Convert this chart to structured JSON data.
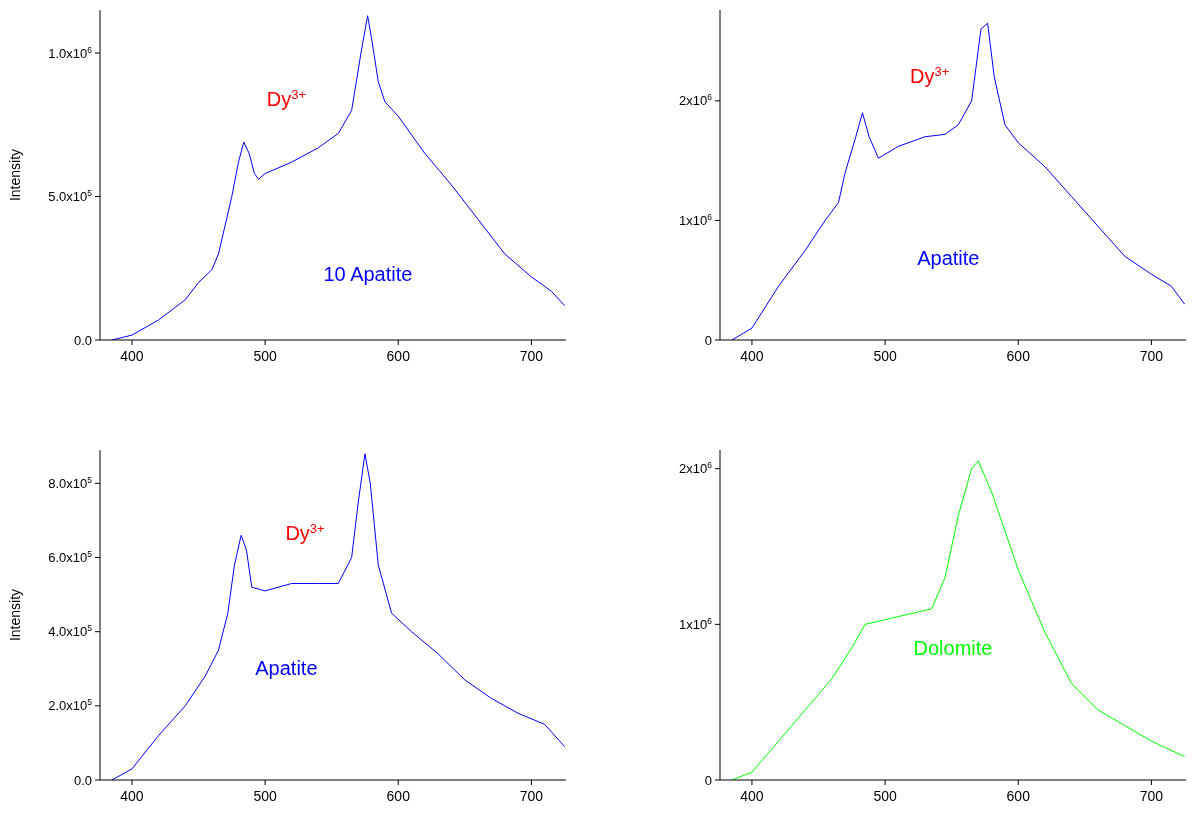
{
  "chart_data": [
    {
      "type": "line",
      "ylabel": "Intensity",
      "xlim": [
        376,
        726
      ],
      "xticks": [
        400,
        500,
        600,
        700
      ],
      "ylim": [
        0,
        1150000
      ],
      "yticks": [
        {
          "value": 0,
          "label": "0.0"
        },
        {
          "value": 500000,
          "label": "5.0x10$^{5}$"
        },
        {
          "value": 1000000,
          "label": "1.0x10$^{6}$"
        }
      ],
      "annotations": [
        "Dy$^{3+}$",
        "10 Apatite"
      ],
      "x": [
        385,
        400,
        420,
        440,
        450,
        460,
        465,
        470,
        475,
        480,
        484,
        488,
        492,
        495,
        500,
        520,
        540,
        555,
        565,
        572,
        577,
        580,
        585,
        590,
        600,
        620,
        640,
        660,
        680,
        700,
        715,
        725
      ],
      "series": [
        {
          "color": "#0000ff",
          "values": [
            0,
            17000,
            70000,
            140000,
            200000,
            245000,
            300000,
            400000,
            500000,
            620000,
            690000,
            650000,
            580000,
            560000,
            580000,
            620000,
            670000,
            720000,
            800000,
            1000000,
            1130000,
            1050000,
            900000,
            830000,
            780000,
            650000,
            540000,
            420000,
            300000,
            220000,
            170000,
            120000
          ]
        }
      ]
    },
    {
      "type": "line",
      "xlim": [
        376,
        726
      ],
      "xticks": [
        400,
        500,
        600,
        700
      ],
      "ylim": [
        0,
        2760000
      ],
      "yticks": [
        0,
        {
          "value": 1000000,
          "label": "1x10$^{6}$"
        },
        {
          "value": 2000000,
          "label": "2x10$^{6}$"
        }
      ],
      "annotations": [
        "Dy$^{3+}$",
        "Apatite"
      ],
      "x": [
        385,
        400,
        420,
        440,
        455,
        465,
        470,
        478,
        483,
        488,
        495,
        510,
        530,
        545,
        555,
        565,
        572,
        577,
        582,
        590,
        600,
        620,
        640,
        660,
        680,
        700,
        715,
        725
      ],
      "series": [
        {
          "color": "#0000ff",
          "values": [
            0,
            100000,
            450000,
            750000,
            1000000,
            1150000,
            1400000,
            1700000,
            1900000,
            1700000,
            1520000,
            1620000,
            1700000,
            1720000,
            1800000,
            2000000,
            2600000,
            2650000,
            2200000,
            1800000,
            1650000,
            1450000,
            1200000,
            950000,
            700000,
            550000,
            450000,
            300000
          ]
        }
      ]
    },
    {
      "type": "line",
      "ylabel": "Intensity",
      "xlim": [
        376,
        726
      ],
      "xticks": [
        400,
        500,
        600,
        700
      ],
      "ylim": [
        0,
        890000
      ],
      "yticks": [
        {
          "value": 0,
          "label": "0.0"
        },
        {
          "value": 200000,
          "label": "2.0x10$^{5}$"
        },
        {
          "value": 400000,
          "label": "4.0x10$^{5}$"
        },
        {
          "value": 600000,
          "label": "6.0x10$^{5}$"
        },
        {
          "value": 800000,
          "label": "8.0x10$^{5}$"
        }
      ],
      "annotations": [
        "Dy$^{3+}$",
        "Apatite"
      ],
      "x": [
        385,
        400,
        420,
        440,
        455,
        465,
        472,
        477,
        482,
        486,
        490,
        500,
        520,
        540,
        555,
        565,
        570,
        575,
        579,
        585,
        595,
        610,
        630,
        650,
        670,
        690,
        710,
        725
      ],
      "series": [
        {
          "color": "#0000ff",
          "values": [
            0,
            30000,
            120000,
            200000,
            280000,
            350000,
            450000,
            580000,
            660000,
            620000,
            520000,
            510000,
            530000,
            530000,
            530000,
            600000,
            750000,
            880000,
            800000,
            580000,
            450000,
            400000,
            340000,
            270000,
            220000,
            180000,
            150000,
            90000
          ]
        }
      ]
    },
    {
      "type": "line",
      "xlim": [
        376,
        726
      ],
      "xticks": [
        400,
        500,
        600,
        700
      ],
      "ylim": [
        0,
        2120000
      ],
      "yticks": [
        0,
        {
          "value": 1000000,
          "label": "1x10$^{6}$"
        },
        {
          "value": 2000000,
          "label": "2x10$^{6}$"
        }
      ],
      "annotations": [
        "Dolomite"
      ],
      "x": [
        385,
        400,
        420,
        440,
        460,
        475,
        485,
        500,
        520,
        535,
        545,
        555,
        565,
        570,
        580,
        590,
        600,
        620,
        640,
        660,
        680,
        700,
        725
      ],
      "series": [
        {
          "color": "#00ff00",
          "values": [
            0,
            50000,
            250000,
            450000,
            650000,
            850000,
            1000000,
            1030000,
            1070000,
            1100000,
            1300000,
            1700000,
            2000000,
            2050000,
            1850000,
            1600000,
            1350000,
            950000,
            620000,
            450000,
            350000,
            250000,
            150000
          ]
        }
      ]
    }
  ]
}
